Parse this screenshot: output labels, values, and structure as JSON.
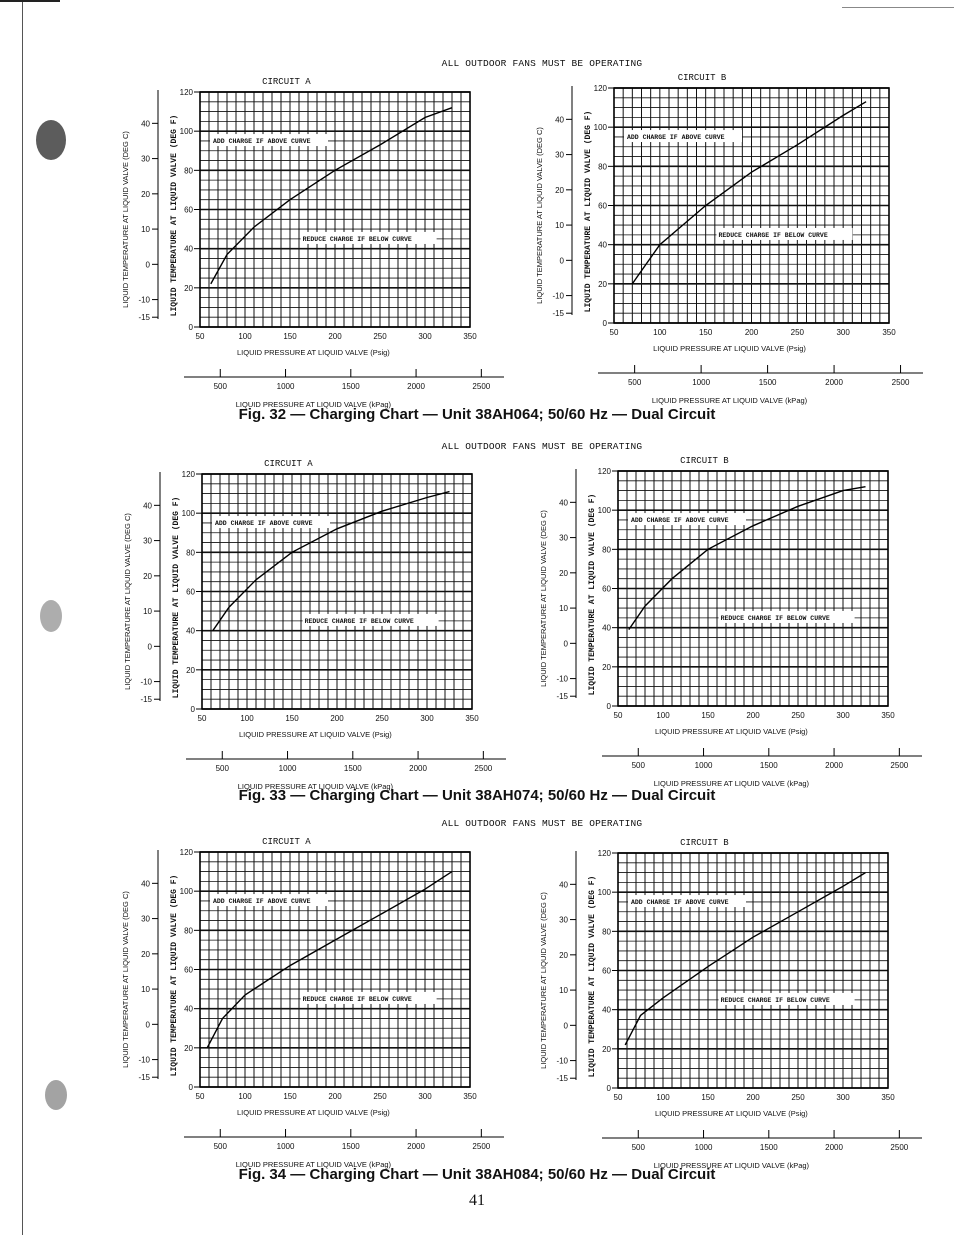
{
  "page": {
    "number": "41"
  },
  "figures": [
    {
      "caption": "Fig. 32 — Charging Chart — Unit 38AH064; 50/60 Hz — Dual Circuit",
      "banner": "ALL OUTDOOR FANS MUST BE OPERATING"
    },
    {
      "caption": "Fig. 33 — Charging Chart — Unit 38AH074; 50/60 Hz — Dual Circuit",
      "banner": "ALL OUTDOOR FANS MUST BE OPERATING"
    },
    {
      "caption": "Fig. 34 — Charging Chart — Unit 38AH084; 50/60 Hz — Dual Circuit",
      "banner": "ALL OUTDOOR FANS MUST BE OPERATING"
    }
  ],
  "chart_data": [
    {
      "figure": "Fig. 32",
      "type": "line",
      "title": "CIRCUIT A",
      "xlabel": "LIQUID PRESSURE AT LIQUID VALVE (Psig)",
      "ylabel": "LIQUID TEMPERATURE AT LIQUID VALVE (DEG F)",
      "ylabel2": "LIQUID TEMPERATURE AT LIQUID VALVE (DEG C)",
      "xlabel2": "LIQUID PRESSURE AT LIQUID VALVE (kPag)",
      "xlim": [
        50,
        350
      ],
      "ylim": [
        0,
        120
      ],
      "xticks": [
        50,
        100,
        150,
        200,
        250,
        300,
        350
      ],
      "yticks": [
        0,
        20,
        40,
        60,
        80,
        100,
        120
      ],
      "y2ticks": [
        -15,
        -10,
        0,
        10,
        20,
        30,
        40
      ],
      "x2ticks": [
        500,
        1000,
        1500,
        2000,
        2500
      ],
      "grid": true,
      "annotations": [
        "ADD CHARGE IF ABOVE CURVE",
        "REDUCE CHARGE IF BELOW CURVE"
      ],
      "x": [
        62,
        80,
        110,
        150,
        200,
        250,
        300,
        330
      ],
      "y": [
        22,
        37,
        51,
        65,
        80,
        93,
        107,
        112
      ]
    },
    {
      "figure": "Fig. 32",
      "type": "line",
      "title": "CIRCUIT B",
      "xlabel": "LIQUID PRESSURE AT LIQUID VALVE (Psig)",
      "ylabel": "LIQUID TEMPERATURE AT LIQUID VALVE (DEG F)",
      "ylabel2": "LIQUID TEMPERATURE AT LIQUID VALVE (DEG C)",
      "xlabel2": "LIQUID PRESSURE AT LIQUID VALVE (kPag)",
      "xlim": [
        50,
        350
      ],
      "ylim": [
        0,
        120
      ],
      "xticks": [
        50,
        100,
        150,
        200,
        250,
        300,
        350
      ],
      "yticks": [
        0,
        20,
        40,
        60,
        80,
        100,
        120
      ],
      "y2ticks": [
        -15,
        -10,
        0,
        10,
        20,
        30,
        40
      ],
      "x2ticks": [
        500,
        1000,
        1500,
        2000,
        2500
      ],
      "grid": true,
      "annotations": [
        "ADD CHARGE IF ABOVE CURVE",
        "REDUCE CHARGE IF BELOW CURVE"
      ],
      "x": [
        70,
        100,
        150,
        200,
        250,
        300,
        325
      ],
      "y": [
        20,
        40,
        60,
        77,
        91,
        106,
        113
      ]
    },
    {
      "figure": "Fig. 33",
      "type": "line",
      "title": "CIRCUIT A",
      "xlabel": "LIQUID PRESSURE AT LIQUID VALVE (Psig)",
      "ylabel": "LIQUID TEMPERATURE AT LIQUID VALVE (DEG F)",
      "ylabel2": "LIQUID TEMPERATURE AT LIQUID VALVE (DEG C)",
      "xlabel2": "LIQUID PRESSURE AT LIQUID VALVE (kPag)",
      "xlim": [
        50,
        350
      ],
      "ylim": [
        0,
        120
      ],
      "xticks": [
        50,
        100,
        150,
        200,
        250,
        300,
        350
      ],
      "yticks": [
        0,
        20,
        40,
        60,
        80,
        100,
        120
      ],
      "y2ticks": [
        -15,
        -10,
        0,
        10,
        20,
        30,
        40
      ],
      "x2ticks": [
        500,
        1000,
        1500,
        2000,
        2500
      ],
      "grid": true,
      "annotations": [
        "ADD CHARGE IF ABOVE CURVE",
        "REDUCE CHARGE IF BELOW CURVE"
      ],
      "x": [
        62,
        80,
        110,
        150,
        200,
        250,
        300,
        325
      ],
      "y": [
        40,
        52,
        66,
        80,
        92,
        101,
        108,
        111
      ]
    },
    {
      "figure": "Fig. 33",
      "type": "line",
      "title": "CIRCUIT B",
      "xlabel": "LIQUID PRESSURE AT LIQUID VALVE (Psig)",
      "ylabel": "LIQUID TEMPERATURE AT LIQUID VALVE (DEG F)",
      "ylabel2": "LIQUID TEMPERATURE AT LIQUID VALVE (DEG C)",
      "xlabel2": "LIQUID PRESSURE AT LIQUID VALVE (kPag)",
      "xlim": [
        50,
        350
      ],
      "ylim": [
        0,
        120
      ],
      "xticks": [
        50,
        100,
        150,
        200,
        250,
        300,
        350
      ],
      "yticks": [
        0,
        20,
        40,
        60,
        80,
        100,
        120
      ],
      "y2ticks": [
        -15,
        -10,
        0,
        10,
        20,
        30,
        40
      ],
      "x2ticks": [
        500,
        1000,
        1500,
        2000,
        2500
      ],
      "grid": true,
      "annotations": [
        "ADD CHARGE IF ABOVE CURVE",
        "REDUCE CHARGE IF BELOW CURVE"
      ],
      "x": [
        62,
        80,
        110,
        150,
        200,
        250,
        300,
        325
      ],
      "y": [
        39,
        51,
        65,
        80,
        92,
        102,
        110,
        112
      ]
    },
    {
      "figure": "Fig. 34",
      "type": "line",
      "title": "CIRCUIT A",
      "xlabel": "LIQUID PRESSURE AT LIQUID VALVE (Psig)",
      "ylabel": "LIQUID TEMPERATURE AT LIQUID VALVE (DEG F)",
      "ylabel2": "LIQUID TEMPERATURE AT LIQUID VALVE (DEG C)",
      "xlabel2": "LIQUID PRESSURE AT LIQUID VALVE (kPag)",
      "xlim": [
        50,
        350
      ],
      "ylim": [
        0,
        120
      ],
      "xticks": [
        50,
        100,
        150,
        200,
        250,
        300,
        350
      ],
      "yticks": [
        0,
        20,
        40,
        60,
        80,
        100,
        120
      ],
      "y2ticks": [
        -15,
        -10,
        0,
        10,
        20,
        30,
        40
      ],
      "x2ticks": [
        500,
        1000,
        1500,
        2000,
        2500
      ],
      "grid": true,
      "annotations": [
        "ADD CHARGE IF ABOVE CURVE",
        "REDUCE CHARGE IF BELOW CURVE"
      ],
      "x": [
        58,
        75,
        100,
        150,
        200,
        250,
        300,
        330
      ],
      "y": [
        20,
        35,
        47,
        62,
        75,
        88,
        101,
        110
      ]
    },
    {
      "figure": "Fig. 34",
      "type": "line",
      "title": "CIRCUIT B",
      "xlabel": "LIQUID PRESSURE AT LIQUID VALVE (Psig)",
      "ylabel": "LIQUID TEMPERATURE AT LIQUID VALVE (DEG F)",
      "ylabel2": "LIQUID TEMPERATURE AT LIQUID VALVE (DEG C)",
      "xlabel2": "LIQUID PRESSURE AT LIQUID VALVE (kPag)",
      "xlim": [
        50,
        350
      ],
      "ylim": [
        0,
        120
      ],
      "xticks": [
        50,
        100,
        150,
        200,
        250,
        300,
        350
      ],
      "yticks": [
        0,
        20,
        40,
        60,
        80,
        100,
        120
      ],
      "y2ticks": [
        -15,
        -10,
        0,
        10,
        20,
        30,
        40
      ],
      "x2ticks": [
        500,
        1000,
        1500,
        2000,
        2500
      ],
      "grid": true,
      "annotations": [
        "ADD CHARGE IF ABOVE CURVE",
        "REDUCE CHARGE IF BELOW CURVE"
      ],
      "x": [
        58,
        75,
        100,
        150,
        200,
        250,
        300,
        325
      ],
      "y": [
        22,
        37,
        46,
        62,
        77,
        90,
        103,
        110
      ]
    }
  ]
}
